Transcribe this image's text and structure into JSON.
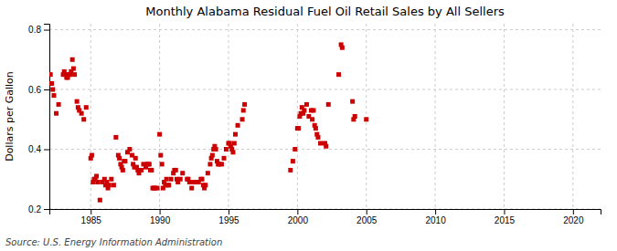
{
  "chart_data": {
    "type": "scatter",
    "title": "Monthly Alabama Residual Fuel Oil Retail Sales by All Sellers",
    "ylabel": "Dollars per Gallon",
    "source": "Source: U.S. Energy Information Administration",
    "xlim": [
      1982.0,
      2022.0
    ],
    "ylim": [
      0.2,
      0.82
    ],
    "xticks": [
      1985,
      1990,
      1995,
      2000,
      2005,
      2010,
      2015,
      2020
    ],
    "yticks": [
      0.2,
      0.4,
      0.6,
      0.8
    ],
    "grid": true,
    "color": "#CC0000",
    "marker": "square",
    "x": [
      1982.08,
      1982.17,
      1982.25,
      1982.33,
      1982.5,
      1982.67,
      1983.0,
      1983.08,
      1983.17,
      1983.25,
      1983.33,
      1983.42,
      1983.5,
      1983.58,
      1983.67,
      1983.75,
      1983.83,
      1984.0,
      1984.08,
      1984.17,
      1984.33,
      1984.5,
      1984.67,
      1985.0,
      1985.08,
      1985.17,
      1985.25,
      1985.33,
      1985.42,
      1985.5,
      1985.67,
      1985.83,
      1986.0,
      1986.08,
      1986.17,
      1986.25,
      1986.33,
      1986.5,
      1986.67,
      1986.83,
      1987.0,
      1987.08,
      1987.17,
      1987.25,
      1987.33,
      1987.42,
      1987.5,
      1987.67,
      1987.83,
      1988.0,
      1988.08,
      1988.17,
      1988.25,
      1988.33,
      1988.42,
      1988.5,
      1988.67,
      1988.83,
      1989.0,
      1989.08,
      1989.17,
      1989.25,
      1989.33,
      1989.42,
      1989.5,
      1989.58,
      1989.67,
      1989.83,
      1990.0,
      1990.08,
      1990.17,
      1990.25,
      1990.33,
      1990.42,
      1990.5,
      1990.58,
      1990.67,
      1990.83,
      1991.0,
      1991.08,
      1991.17,
      1991.25,
      1991.33,
      1991.5,
      1991.67,
      1992.0,
      1992.08,
      1992.17,
      1992.25,
      1992.33,
      1992.5,
      1992.67,
      1992.83,
      1993.0,
      1993.08,
      1993.17,
      1993.25,
      1993.33,
      1993.5,
      1993.67,
      1993.75,
      1993.83,
      1993.92,
      1994.0,
      1994.08,
      1994.17,
      1994.25,
      1994.33,
      1994.5,
      1994.67,
      1994.83,
      1995.0,
      1995.08,
      1995.17,
      1995.25,
      1995.33,
      1995.42,
      1995.5,
      1995.67,
      1996.0,
      1996.08,
      1996.17,
      1999.5,
      1999.67,
      1999.83,
      2000.0,
      2000.08,
      2000.17,
      2000.25,
      2000.33,
      2000.42,
      2000.5,
      2000.67,
      2000.83,
      2001.0,
      2001.08,
      2001.17,
      2001.25,
      2001.33,
      2001.42,
      2001.5,
      2001.67,
      2002.0,
      2002.08,
      2002.25,
      2003.0,
      2003.17,
      2003.25,
      2004.0,
      2004.08,
      2004.17,
      2005.0
    ],
    "values": [
      0.65,
      0.62,
      0.6,
      0.58,
      0.52,
      0.55,
      0.65,
      0.66,
      0.65,
      0.64,
      0.64,
      0.65,
      0.65,
      0.66,
      0.7,
      0.67,
      0.65,
      0.56,
      0.54,
      0.53,
      0.52,
      0.5,
      0.54,
      0.37,
      0.38,
      0.29,
      0.3,
      0.3,
      0.31,
      0.29,
      0.23,
      0.29,
      0.3,
      0.28,
      0.29,
      0.27,
      0.28,
      0.3,
      0.28,
      0.44,
      0.38,
      0.37,
      0.35,
      0.34,
      0.33,
      0.36,
      0.36,
      0.39,
      0.4,
      0.38,
      0.35,
      0.34,
      0.37,
      0.34,
      0.33,
      0.32,
      0.33,
      0.35,
      0.34,
      0.35,
      0.35,
      0.35,
      0.33,
      0.33,
      0.27,
      0.27,
      0.27,
      0.27,
      0.45,
      0.38,
      0.35,
      0.27,
      0.29,
      0.28,
      0.3,
      0.28,
      0.28,
      0.3,
      0.32,
      0.33,
      0.33,
      0.3,
      0.29,
      0.3,
      0.32,
      0.3,
      0.3,
      0.29,
      0.29,
      0.27,
      0.29,
      0.29,
      0.29,
      0.3,
      0.3,
      0.28,
      0.27,
      0.28,
      0.32,
      0.35,
      0.37,
      0.38,
      0.4,
      0.41,
      0.4,
      0.36,
      0.35,
      0.35,
      0.35,
      0.37,
      0.4,
      0.42,
      0.42,
      0.41,
      0.4,
      0.39,
      0.42,
      0.45,
      0.48,
      0.5,
      0.53,
      0.55,
      0.33,
      0.36,
      0.4,
      0.47,
      0.47,
      0.51,
      0.52,
      0.54,
      0.52,
      0.53,
      0.55,
      0.51,
      0.53,
      0.5,
      0.53,
      0.48,
      0.47,
      0.45,
      0.44,
      0.42,
      0.42,
      0.41,
      0.55,
      0.65,
      0.75,
      0.74,
      0.56,
      0.5,
      0.51,
      0.5
    ]
  }
}
